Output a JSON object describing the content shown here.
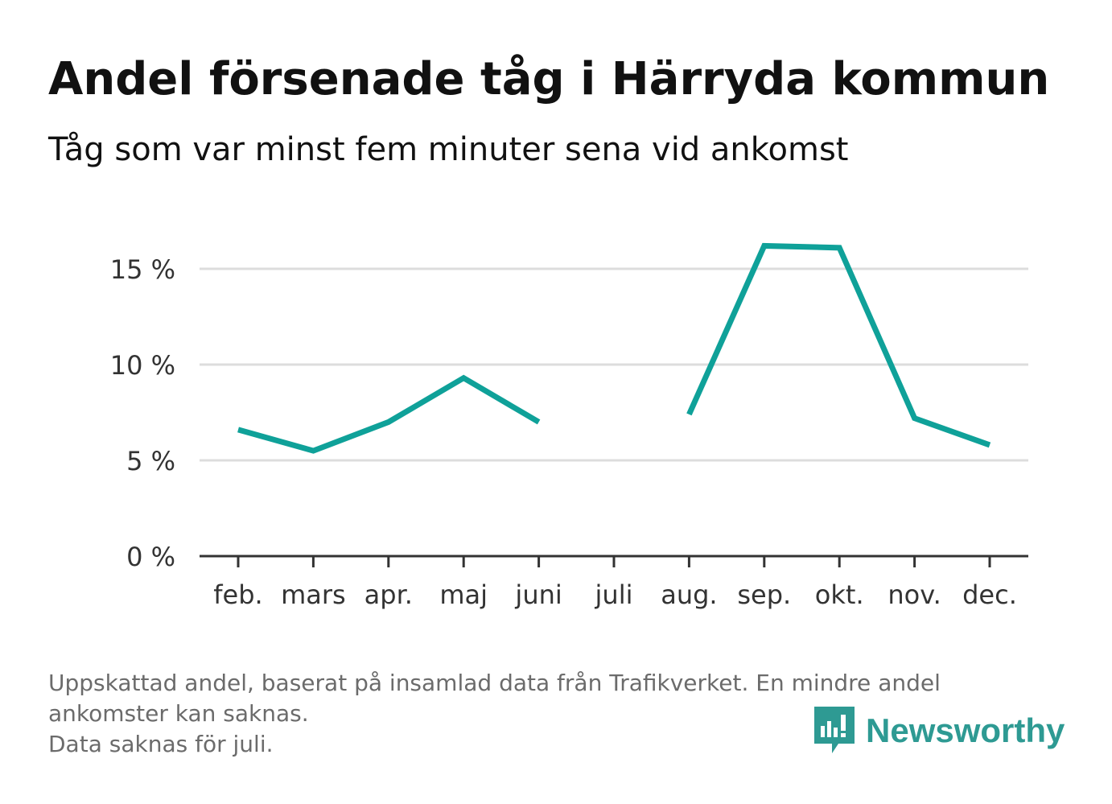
{
  "title": "Andel försenade tåg i Härryda kommun",
  "subtitle": "Tåg som var minst fem minuter sena vid ankomst",
  "footnote": {
    "line1": "Uppskattad andel, baserat på insamlad data från Trafikverket. En mindre andel",
    "line2": "ankomster kan saknas.",
    "line3": "Data saknas för juli."
  },
  "brand": {
    "name": "Newsworthy",
    "icon": "newsworthy-logo-icon",
    "color": "#2e9a93"
  },
  "chart_data": {
    "type": "line",
    "title": "Andel försenade tåg i Härryda kommun",
    "subtitle": "Tåg som var minst fem minuter sena vid ankomst",
    "xlabel": "",
    "ylabel": "",
    "categories": [
      "feb.",
      "mars",
      "apr.",
      "maj",
      "juni",
      "juli",
      "aug.",
      "sep.",
      "okt.",
      "nov.",
      "dec."
    ],
    "values": [
      6.6,
      5.5,
      7.0,
      9.3,
      7.0,
      null,
      7.4,
      16.2,
      16.1,
      7.2,
      5.8
    ],
    "ylim": [
      0,
      17
    ],
    "yticks": [
      0,
      5,
      10,
      15
    ],
    "ytick_labels": [
      "0 %",
      "5 %",
      "10 %",
      "15 %"
    ],
    "grid": true,
    "legend": "none",
    "line_color": "#0fa199",
    "grid_color": "#dddddd",
    "axis_color": "#333333"
  }
}
